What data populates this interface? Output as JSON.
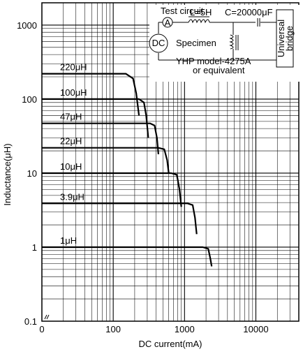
{
  "chart_data": {
    "type": "line",
    "title": "",
    "xlabel": "DC current(mA)",
    "ylabel": "Inductance(μH)",
    "x_scale": "log",
    "y_scale": "log",
    "xlim": [
      10,
      40000
    ],
    "ylim": [
      0.1,
      2000
    ],
    "x_ticks": [
      "0",
      "100",
      "1000",
      "10000"
    ],
    "y_ticks": [
      "0.1",
      "1",
      "10",
      "100",
      "1000"
    ],
    "grid": true,
    "series": [
      {
        "name": "220μH",
        "x": [
          10,
          150,
          190,
          210,
          230
        ],
        "y": [
          220,
          220,
          190,
          120,
          60
        ]
      },
      {
        "name": "100μH",
        "x": [
          10,
          230,
          270,
          290,
          310
        ],
        "y": [
          100,
          100,
          90,
          60,
          30
        ]
      },
      {
        "name": "47μH",
        "x": [
          10,
          330,
          380,
          410,
          430
        ],
        "y": [
          47,
          47,
          44,
          30,
          18
        ]
      },
      {
        "name": "22μH",
        "x": [
          10,
          430,
          520,
          570,
          600
        ],
        "y": [
          22,
          22,
          21,
          15,
          10
        ]
      },
      {
        "name": "10μH",
        "x": [
          10,
          650,
          780,
          850,
          900
        ],
        "y": [
          10,
          10,
          9.5,
          6,
          3.5
        ]
      },
      {
        "name": "3.9μH",
        "x": [
          10,
          1100,
          1300,
          1400,
          1480
        ],
        "y": [
          3.9,
          3.9,
          3.7,
          2.5,
          1.5
        ]
      },
      {
        "name": "1μH",
        "x": [
          10,
          1800,
          2150,
          2300,
          2400
        ],
        "y": [
          1,
          1,
          0.95,
          0.7,
          0.55
        ]
      }
    ]
  },
  "inset": {
    "test_circuit": "Test circuit",
    "inductor": "L=5H",
    "capacitor": "C=20000μF",
    "ammeter": "A",
    "dc_source": "DC",
    "specimen": "Specimen",
    "bridge_line1": "Universal",
    "bridge_line2": "bridge",
    "model_line1": "YHP model-4275A",
    "model_line2": "or equivalent"
  }
}
